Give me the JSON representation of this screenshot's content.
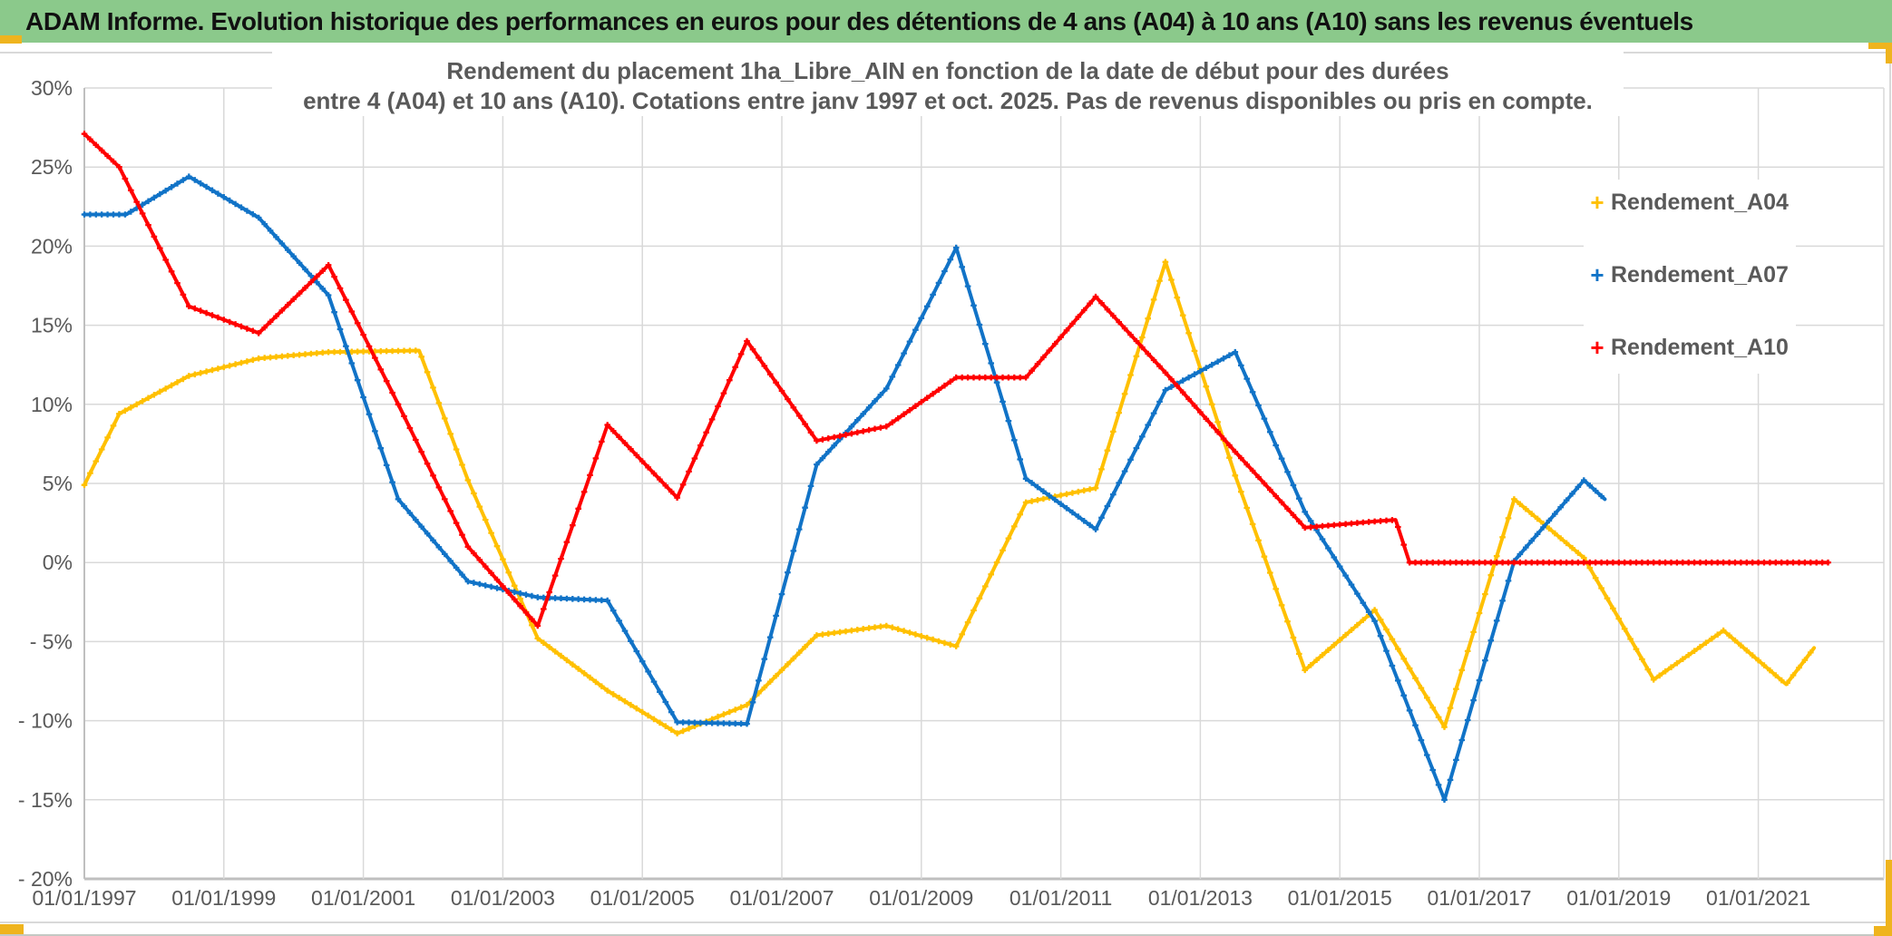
{
  "window": {
    "title_bar": "ADAM Informe. Evolution historique des performances en euros pour des détentions de 4 ans (A04) à 10 ans (A10) sans les revenus éventuels",
    "title_bar_bg": "#8BC98B",
    "accent_color": "#EFB41E",
    "text_gray": "#595959"
  },
  "chart_data": {
    "type": "line",
    "title_line1": "Rendement du placement 1ha_Libre_AIN en fonction de la date de début pour des durées",
    "title_line2": "entre 4 (A04) et 10 ans (A10). Cotations entre janv 1997 et oct. 2025. Pas de revenus disponibles ou pris en compte.",
    "xlabel": "",
    "ylabel": "",
    "grid": true,
    "legend_position": "right",
    "ylim": [
      -20,
      30
    ],
    "xlim": [
      1997,
      2022.8
    ],
    "x_tick_labels": [
      "01/01/1997",
      "01/01/1999",
      "01/01/2001",
      "01/01/2003",
      "01/01/2005",
      "01/01/2007",
      "01/01/2009",
      "01/01/2011",
      "01/01/2013",
      "01/01/2015",
      "01/01/2017",
      "01/01/2019",
      "01/01/2021"
    ],
    "x_tick_years": [
      1997,
      1999,
      2001,
      2003,
      2005,
      2007,
      2009,
      2011,
      2013,
      2015,
      2017,
      2019,
      2021
    ],
    "y_tick_labels": [
      "30%",
      "25%",
      "20%",
      "15%",
      "10%",
      "5%",
      "0%",
      "- 5%",
      "- 10%",
      "- 15%",
      "- 20%"
    ],
    "y_tick_values": [
      30,
      25,
      20,
      15,
      10,
      5,
      0,
      -5,
      -10,
      -15,
      -20
    ],
    "marker": "plus",
    "series": [
      {
        "name": "Rendement_A04",
        "color": "#FFC000",
        "points": [
          [
            1997.0,
            4.9
          ],
          [
            1997.5,
            9.4
          ],
          [
            1998.5,
            11.8
          ],
          [
            1999.5,
            12.9
          ],
          [
            2000.5,
            13.3
          ],
          [
            2001.8,
            13.4
          ],
          [
            2002.5,
            5.2
          ],
          [
            2003.5,
            -4.8
          ],
          [
            2004.5,
            -8.1
          ],
          [
            2005.5,
            -10.8
          ],
          [
            2006.5,
            -9.0
          ],
          [
            2007.5,
            -4.6
          ],
          [
            2008.5,
            -4.0
          ],
          [
            2009.5,
            -5.3
          ],
          [
            2010.5,
            3.8
          ],
          [
            2011.5,
            4.7
          ],
          [
            2012.5,
            19.0
          ],
          [
            2013.5,
            5.5
          ],
          [
            2014.5,
            -6.8
          ],
          [
            2015.5,
            -3.0
          ],
          [
            2016.5,
            -10.4
          ],
          [
            2017.5,
            4.0
          ],
          [
            2018.5,
            0.3
          ],
          [
            2019.5,
            -7.4
          ],
          [
            2020.5,
            -4.3
          ],
          [
            2021.4,
            -7.7
          ],
          [
            2021.8,
            -5.4
          ]
        ]
      },
      {
        "name": "Rendement_A07",
        "color": "#1173C7",
        "points": [
          [
            1997.0,
            22.0
          ],
          [
            1997.6,
            22.0
          ],
          [
            1998.5,
            24.4
          ],
          [
            1999.5,
            21.8
          ],
          [
            2000.5,
            16.9
          ],
          [
            2001.5,
            4.0
          ],
          [
            2002.5,
            -1.2
          ],
          [
            2003.5,
            -2.2
          ],
          [
            2004.5,
            -2.4
          ],
          [
            2005.5,
            -10.1
          ],
          [
            2006.5,
            -10.2
          ],
          [
            2007.5,
            6.2
          ],
          [
            2008.5,
            11.0
          ],
          [
            2009.5,
            19.9
          ],
          [
            2010.5,
            5.3
          ],
          [
            2011.5,
            2.1
          ],
          [
            2012.5,
            10.9
          ],
          [
            2013.5,
            13.3
          ],
          [
            2014.5,
            3.2
          ],
          [
            2015.5,
            -3.7
          ],
          [
            2016.5,
            -15.0
          ],
          [
            2017.5,
            0.1
          ],
          [
            2018.5,
            5.2
          ],
          [
            2018.8,
            4.0
          ]
        ]
      },
      {
        "name": "Rendement_A10",
        "color": "#FF0000",
        "points": [
          [
            1997.0,
            27.1
          ],
          [
            1997.5,
            25.0
          ],
          [
            1998.5,
            16.2
          ],
          [
            1999.5,
            14.5
          ],
          [
            2000.5,
            18.8
          ],
          [
            2001.5,
            10.0
          ],
          [
            2002.5,
            1.0
          ],
          [
            2003.5,
            -4.0
          ],
          [
            2004.5,
            8.7
          ],
          [
            2005.5,
            4.1
          ],
          [
            2006.5,
            14.0
          ],
          [
            2007.5,
            7.7
          ],
          [
            2008.5,
            8.6
          ],
          [
            2009.5,
            11.7
          ],
          [
            2010.5,
            11.7
          ],
          [
            2011.5,
            16.8
          ],
          [
            2012.5,
            12.0
          ],
          [
            2013.5,
            7.0
          ],
          [
            2014.5,
            2.2
          ],
          [
            2015.5,
            2.6
          ],
          [
            2015.8,
            2.7
          ],
          [
            2016.0,
            0.0
          ],
          [
            2022.0,
            0.0
          ]
        ]
      }
    ]
  }
}
